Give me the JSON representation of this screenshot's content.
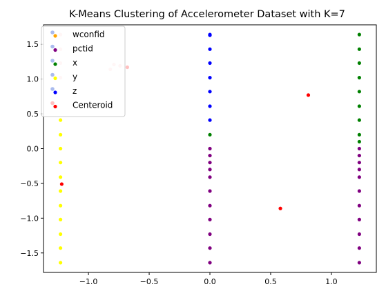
{
  "chart_data": {
    "type": "scatter",
    "title": "K-Means Clustering of Accelerometer Dataset with K=7",
    "xlabel": "",
    "ylabel": "",
    "xlim": [
      -1.37,
      1.37
    ],
    "ylim": [
      -1.78,
      1.78
    ],
    "xticks": [
      -1.0,
      -0.5,
      0.0,
      0.5,
      1.0
    ],
    "xtick_labels": [
      "−1.0",
      "−0.5",
      "0.0",
      "0.5",
      "1.0"
    ],
    "yticks": [
      -1.5,
      -1.0,
      -0.5,
      0.0,
      0.5,
      1.0,
      1.5
    ],
    "ytick_labels": [
      "−1.5",
      "−1.0",
      "−0.5",
      "0.0",
      "0.5",
      "1.0",
      "1.5"
    ],
    "grid": false,
    "legend_position": "top-left",
    "series": [
      {
        "name": "wconfid",
        "color": "#ffa500",
        "legend_marker_colors": [
          "#aabbee",
          "#ffa500"
        ],
        "x": [],
        "y": []
      },
      {
        "name": "pctid",
        "color": "#800080",
        "legend_marker_colors": [
          "#aabbee",
          "#800080"
        ],
        "x": [
          0,
          0,
          0,
          0,
          0,
          0,
          0,
          0,
          0,
          0,
          0,
          1.23,
          1.23,
          1.23,
          1.23,
          1.23,
          1.23,
          1.23,
          1.23,
          1.23,
          1.23,
          1.23
        ],
        "y": [
          0.0,
          -0.2,
          -0.41,
          -0.61,
          -0.82,
          -1.02,
          -1.23,
          -1.43,
          -1.64,
          -0.1,
          -0.3,
          0.0,
          -0.2,
          -0.41,
          -0.61,
          -0.82,
          -1.02,
          -1.23,
          -1.43,
          -1.64,
          -0.1,
          -0.3
        ]
      },
      {
        "name": "x",
        "color": "#008000",
        "legend_marker_colors": [
          "#aabbee",
          "#008000"
        ],
        "x": [
          0,
          1.23,
          1.23,
          1.23,
          1.23,
          1.23,
          1.23,
          1.23,
          1.23,
          1.23
        ],
        "y": [
          0.2,
          0.2,
          0.41,
          0.61,
          0.82,
          1.02,
          1.23,
          1.43,
          1.64,
          0.1
        ]
      },
      {
        "name": "y",
        "color": "#ffff00",
        "legend_marker_colors": [
          "#aabbee",
          "#ffff00"
        ],
        "x": [
          -1.23,
          -1.23,
          -1.23,
          -1.23,
          -1.23,
          -1.23,
          -1.23,
          -1.23,
          -1.23,
          -1.23,
          -1.23
        ],
        "y": [
          0.41,
          0.2,
          0.0,
          -0.2,
          -0.41,
          -0.61,
          -0.82,
          -1.02,
          -1.23,
          -1.43,
          -1.64
        ]
      },
      {
        "name": "z",
        "color": "#0000ff",
        "legend_marker_colors": [
          "#aabbee",
          "#0000ff"
        ],
        "x": [
          0,
          0,
          0,
          0,
          0,
          0,
          0,
          0
        ],
        "y": [
          0.41,
          0.61,
          0.82,
          1.02,
          1.23,
          1.43,
          1.64,
          1.63
        ]
      },
      {
        "name": "",
        "color": "#ffc0c0",
        "legend_marker_colors": [],
        "x": [
          -1.23,
          -1.23,
          -1.23,
          -1.23,
          -0.82,
          -0.79,
          -0.74,
          -0.68
        ],
        "y": [
          1.64,
          1.43,
          1.23,
          1.02,
          1.14,
          1.21,
          1.19,
          1.17
        ]
      },
      {
        "name": "Centeroid",
        "color": "#ff0000",
        "legend_marker_colors": [
          "#ffc0c0",
          "#ff0000"
        ],
        "x": [
          -1.22,
          0.58,
          0.81
        ],
        "y": [
          -0.51,
          -0.86,
          0.77
        ]
      }
    ]
  }
}
